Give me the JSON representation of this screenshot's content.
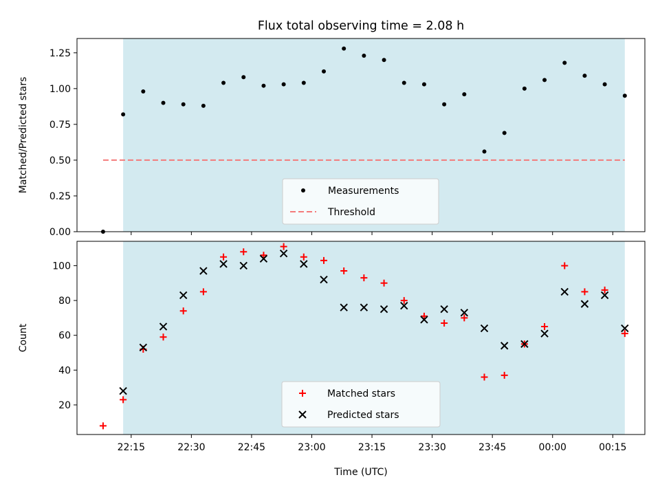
{
  "figure": {
    "title": "Flux total observing time = 2.08 h",
    "xlabel": "Time (UTC)",
    "x_ticks": [
      {
        "min": 1335,
        "label": "22:15"
      },
      {
        "min": 1350,
        "label": "22:30"
      },
      {
        "min": 1365,
        "label": "22:45"
      },
      {
        "min": 1380,
        "label": "23:00"
      },
      {
        "min": 1395,
        "label": "23:15"
      },
      {
        "min": 1410,
        "label": "23:30"
      },
      {
        "min": 1425,
        "label": "23:45"
      },
      {
        "min": 1440,
        "label": "00:00"
      },
      {
        "min": 1455,
        "label": "00:15"
      }
    ],
    "xlim": [
      1321.5,
      1463
    ],
    "observing_window": [
      1333.0,
      1458.0
    ],
    "colors": {
      "window": "#d3eaf0",
      "measurement": "#000000",
      "threshold": "#f47a7a",
      "matched": "#ff0000",
      "predicted": "#000000"
    }
  },
  "chart_data": [
    {
      "type": "scatter",
      "title": "Flux total observing time = 2.08 h",
      "ylabel": "Matched/Predicted stars",
      "ylim": [
        0,
        1.35
      ],
      "yticks": [
        "0.00",
        "0.25",
        "0.50",
        "0.75",
        "1.00",
        "1.25"
      ],
      "legend_placement": "lower-center",
      "series": [
        {
          "name": "Measurements",
          "marker": "dot",
          "x": [
            1328,
            1333,
            1338,
            1343,
            1348,
            1353,
            1358,
            1363,
            1368,
            1373,
            1378,
            1383,
            1388,
            1393,
            1398,
            1403,
            1408,
            1413,
            1418,
            1423,
            1428,
            1433,
            1438,
            1443,
            1448,
            1453,
            1458
          ],
          "y": [
            0.0,
            0.82,
            0.98,
            0.9,
            0.89,
            0.88,
            1.04,
            1.08,
            1.02,
            1.03,
            1.04,
            1.12,
            1.28,
            1.23,
            1.2,
            1.04,
            1.03,
            0.89,
            0.96,
            0.56,
            0.69,
            1.0,
            1.06,
            1.18,
            1.09,
            1.03,
            0.95
          ]
        },
        {
          "name": "Threshold",
          "marker": "dashed-line",
          "x": [
            1328,
            1458
          ],
          "y": [
            0.5,
            0.5
          ]
        }
      ]
    },
    {
      "type": "scatter",
      "ylabel": "Count",
      "ylim": [
        3,
        114
      ],
      "yticks": [
        "20",
        "40",
        "60",
        "80",
        "100"
      ],
      "legend_placement": "lower-center",
      "series": [
        {
          "name": "Matched stars",
          "marker": "plus",
          "x": [
            1328,
            1333,
            1338,
            1343,
            1348,
            1353,
            1358,
            1363,
            1368,
            1373,
            1378,
            1383,
            1388,
            1393,
            1398,
            1403,
            1408,
            1413,
            1418,
            1423,
            1428,
            1433,
            1438,
            1443,
            1448,
            1453,
            1458
          ],
          "y": [
            8,
            23,
            52,
            59,
            74,
            85,
            105,
            108,
            106,
            111,
            105,
            103,
            97,
            93,
            90,
            80,
            71,
            67,
            70,
            36,
            37,
            55,
            65,
            100,
            85,
            86,
            61
          ]
        },
        {
          "name": "Predicted stars",
          "marker": "x",
          "x": [
            1333,
            1338,
            1343,
            1348,
            1353,
            1358,
            1363,
            1368,
            1373,
            1378,
            1383,
            1388,
            1393,
            1398,
            1403,
            1408,
            1413,
            1418,
            1423,
            1428,
            1433,
            1438,
            1443,
            1448,
            1453,
            1458
          ],
          "y": [
            28,
            53,
            65,
            83,
            97,
            101,
            100,
            104,
            107,
            101,
            92,
            76,
            76,
            75,
            77,
            69,
            75,
            73,
            64,
            54,
            55,
            61,
            85,
            78,
            83,
            64
          ]
        }
      ]
    }
  ]
}
